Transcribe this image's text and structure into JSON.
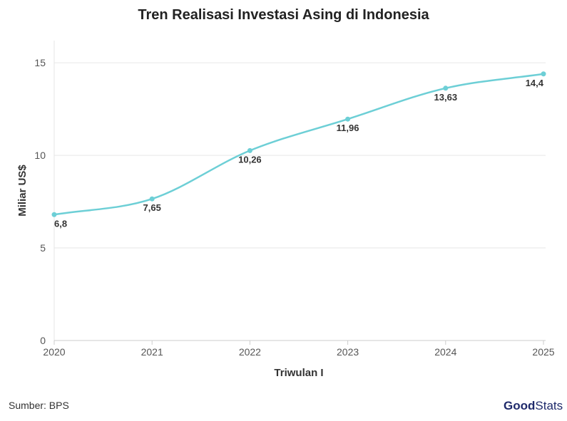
{
  "chart_data": {
    "type": "line",
    "title": "Tren Realisasi Investasi Asing di Indonesia",
    "xlabel": "Triwulan I",
    "ylabel": "Miliar US$",
    "x": [
      "2020",
      "2021",
      "2022",
      "2023",
      "2024",
      "2025"
    ],
    "series": [
      {
        "values": [
          6.8,
          7.65,
          10.26,
          11.96,
          13.63,
          14.4
        ],
        "labels": [
          "6,8",
          "7,65",
          "10,26",
          "11,96",
          "13,63",
          "14,4"
        ]
      }
    ],
    "yticks": [
      0,
      5,
      10,
      15
    ],
    "ylim": [
      0,
      16.2
    ],
    "grid": true,
    "line_color": "#6dcfd6"
  },
  "source": "Sumber: BPS",
  "logo": {
    "part1": "Good",
    "part2": "Stats"
  }
}
